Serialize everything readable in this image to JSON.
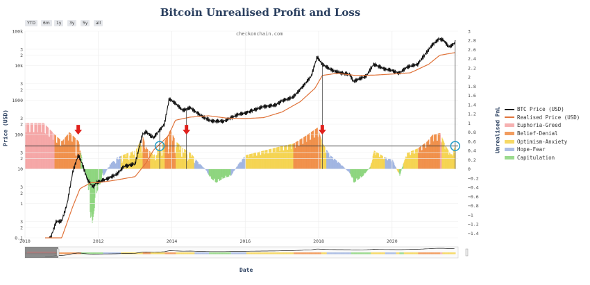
{
  "chart_data": {
    "type": "line",
    "title": "Bitcoin Unrealised Profit and Loss",
    "watermark": "checkonchain.com",
    "xlabel": "Date",
    "ylabel_left": "Price (USD)",
    "ylabel_right": "Unrealised PnL",
    "range_selector": [
      "YTD",
      "6m",
      "1y",
      "3y",
      "5y",
      "all"
    ],
    "x_range": [
      2010.0,
      2021.8
    ],
    "x_ticks": [
      2010,
      2012,
      2014,
      2016,
      2018,
      2020
    ],
    "x_tick_labels": [
      "2010",
      "2012",
      "2014",
      "2016",
      "2018",
      "2020"
    ],
    "y_left_scale": "log",
    "y_left_range": [
      0.1,
      100000
    ],
    "y_left_ticks": [
      {
        "v": 100000,
        "t": "100k"
      },
      {
        "v": 30000,
        "t": "3"
      },
      {
        "v": 20000,
        "t": "2"
      },
      {
        "v": 10000,
        "t": "10k"
      },
      {
        "v": 3000,
        "t": "3"
      },
      {
        "v": 2000,
        "t": "2"
      },
      {
        "v": 1000,
        "t": "1000"
      },
      {
        "v": 300,
        "t": "3"
      },
      {
        "v": 200,
        "t": "2"
      },
      {
        "v": 100,
        "t": "100"
      },
      {
        "v": 30,
        "t": "3"
      },
      {
        "v": 20,
        "t": "2"
      },
      {
        "v": 10,
        "t": "10"
      },
      {
        "v": 3,
        "t": "3"
      },
      {
        "v": 2,
        "t": "2"
      },
      {
        "v": 1,
        "t": "1"
      },
      {
        "v": 0.3,
        "t": "3"
      },
      {
        "v": 0.2,
        "t": "2"
      },
      {
        "v": 0.1,
        "t": "0.1"
      }
    ],
    "y_right_range": [
      -1.5,
      3.0
    ],
    "y_right_ticks": [
      {
        "v": 3,
        "t": "3"
      },
      {
        "v": 2.8,
        "t": "2.8"
      },
      {
        "v": 2.6,
        "t": "2.6"
      },
      {
        "v": 2.4,
        "t": "2.4"
      },
      {
        "v": 2.2,
        "t": "2.2"
      },
      {
        "v": 2,
        "t": "2"
      },
      {
        "v": 1.8,
        "t": "1.8"
      },
      {
        "v": 1.6,
        "t": "1.6"
      },
      {
        "v": 1.4,
        "t": "1.4"
      },
      {
        "v": 1.2,
        "t": "1.2"
      },
      {
        "v": 1,
        "t": "1"
      },
      {
        "v": 0.8,
        "t": "0.8"
      },
      {
        "v": 0.6,
        "t": "0.6"
      },
      {
        "v": 0.4,
        "t": "0.4"
      },
      {
        "v": 0.2,
        "t": "0.2"
      },
      {
        "v": 0,
        "t": "0"
      },
      {
        "v": -0.2,
        "t": "−0.2"
      },
      {
        "v": -0.4,
        "t": "−0.4"
      },
      {
        "v": -0.6,
        "t": "−0.6"
      },
      {
        "v": -0.8,
        "t": "−0.8"
      },
      {
        "v": -1,
        "t": "−1"
      },
      {
        "v": -1.2,
        "t": "−1.2"
      },
      {
        "v": -1.4,
        "t": "−1.4"
      }
    ],
    "reference_line_pnl": 0.5,
    "series": [
      {
        "name": "BTC Price (USD)",
        "color": "#111111",
        "axis": "left",
        "x": [
          2010.55,
          2010.7,
          2010.85,
          2011.0,
          2011.15,
          2011.3,
          2011.45,
          2011.55,
          2011.7,
          2011.85,
          2011.95,
          2012.2,
          2012.5,
          2012.7,
          2013.0,
          2013.2,
          2013.3,
          2013.5,
          2013.8,
          2013.93,
          2014.1,
          2014.3,
          2014.5,
          2014.8,
          2015.05,
          2015.4,
          2015.8,
          2016.0,
          2016.5,
          2016.8,
          2017.0,
          2017.3,
          2017.6,
          2017.8,
          2017.96,
          2018.1,
          2018.3,
          2018.5,
          2018.85,
          2018.95,
          2019.3,
          2019.5,
          2019.8,
          2020.0,
          2020.2,
          2020.4,
          2020.7,
          2020.95,
          2021.1,
          2021.28,
          2021.4,
          2021.55,
          2021.65,
          2021.72
        ],
        "y": [
          0.07,
          0.1,
          0.3,
          0.3,
          1,
          8,
          25,
          15,
          5,
          3,
          4,
          5,
          7,
          12,
          14,
          100,
          120,
          80,
          200,
          1100,
          800,
          500,
          600,
          350,
          250,
          240,
          380,
          420,
          650,
          700,
          950,
          1200,
          2700,
          5000,
          18000,
          11000,
          8000,
          6500,
          5500,
          3500,
          5000,
          11000,
          8000,
          7200,
          6000,
          9000,
          11000,
          25000,
          40000,
          60000,
          55000,
          35000,
          40000,
          48000
        ]
      },
      {
        "name": "Realised Price (USD)",
        "color": "#e0733a",
        "axis": "left",
        "x": [
          2010.55,
          2011.0,
          2011.3,
          2011.5,
          2011.8,
          2012.0,
          2012.5,
          2013.0,
          2013.3,
          2013.5,
          2013.9,
          2014.1,
          2014.5,
          2015.0,
          2015.5,
          2016.0,
          2016.5,
          2017.0,
          2017.5,
          2017.9,
          2018.1,
          2018.5,
          2019.0,
          2019.5,
          2020.0,
          2020.5,
          2021.0,
          2021.3,
          2021.72
        ],
        "y": [
          0.05,
          0.1,
          0.8,
          2.7,
          4,
          4,
          4.8,
          6,
          15,
          35,
          90,
          260,
          320,
          350,
          300,
          290,
          310,
          450,
          900,
          2200,
          5200,
          6000,
          5200,
          5300,
          5700,
          6200,
          11000,
          20000,
          24000
        ]
      },
      {
        "name": "Euphoria-Greed",
        "color": "#f4a3a3",
        "type": "pnl_band",
        "ranges": [
          [
            2010.0,
            2010.8
          ],
          [
            2011.2,
            2011.45
          ],
          [
            2017.9,
            2018.05
          ],
          [
            2020.95,
            2021.35
          ]
        ]
      },
      {
        "name": "Belief-Denial",
        "color": "#f08c44",
        "type": "pnl_band",
        "ranges": [
          [
            2010.8,
            2011.5
          ],
          [
            2013.2,
            2013.4
          ],
          [
            2013.8,
            2014.1
          ],
          [
            2017.3,
            2018.05
          ],
          [
            2020.7,
            2021.3
          ]
        ]
      },
      {
        "name": "Optimism-Anxiety",
        "color": "#f5d24b",
        "type": "pnl_band",
        "ranges": [
          [
            2012.6,
            2013.2
          ],
          [
            2013.4,
            2013.8
          ],
          [
            2014.1,
            2014.6
          ],
          [
            2016.0,
            2017.3
          ],
          [
            2018.05,
            2018.2
          ],
          [
            2019.4,
            2019.8
          ],
          [
            2020.1,
            2020.7
          ],
          [
            2021.35,
            2021.72
          ]
        ]
      },
      {
        "name": "Hope-Fear",
        "color": "#9db3e0",
        "type": "pnl_band",
        "ranges": [
          [
            2012.1,
            2012.6
          ],
          [
            2014.6,
            2015.0
          ],
          [
            2015.6,
            2016.0
          ],
          [
            2018.2,
            2018.85
          ],
          [
            2019.8,
            2020.1
          ]
        ]
      },
      {
        "name": "Capitulation",
        "color": "#8ad37a",
        "type": "pnl_band",
        "ranges": [
          [
            2011.5,
            2012.1
          ],
          [
            2015.0,
            2015.6
          ],
          [
            2018.85,
            2019.4
          ],
          [
            2020.18,
            2020.3
          ]
        ]
      }
    ],
    "pnl": {
      "x": [
        2010.0,
        2010.5,
        2010.8,
        2011.0,
        2011.2,
        2011.45,
        2011.55,
        2011.7,
        2011.8,
        2011.95,
        2012.1,
        2012.3,
        2012.5,
        2012.8,
        2013.0,
        2013.2,
        2013.3,
        2013.5,
        2013.8,
        2013.95,
        2014.1,
        2014.3,
        2014.5,
        2014.7,
        2014.9,
        2015.05,
        2015.2,
        2015.4,
        2015.6,
        2015.8,
        2016.0,
        2016.5,
        2017.0,
        2017.3,
        2017.6,
        2017.96,
        2018.1,
        2018.3,
        2018.6,
        2018.85,
        2018.95,
        2019.2,
        2019.4,
        2019.5,
        2019.8,
        2020.0,
        2020.2,
        2020.25,
        2020.4,
        2020.7,
        2020.95,
        2021.1,
        2021.3,
        2021.45,
        2021.6,
        2021.72
      ],
      "y": [
        1.0,
        1.0,
        0.75,
        0.6,
        0.8,
        0.6,
        0.2,
        -0.3,
        -1.3,
        -0.5,
        -0.2,
        0.1,
        0.25,
        0.35,
        0.4,
        0.7,
        0.45,
        0.3,
        0.6,
        0.85,
        0.6,
        0.45,
        0.35,
        0.15,
        0.0,
        -0.2,
        -0.3,
        -0.2,
        -0.15,
        0.1,
        0.3,
        0.4,
        0.5,
        0.55,
        0.7,
        0.9,
        0.55,
        0.3,
        0.1,
        -0.1,
        -0.3,
        -0.15,
        0.05,
        0.4,
        0.25,
        0.2,
        -0.15,
        0.0,
        0.35,
        0.45,
        0.6,
        0.75,
        0.78,
        0.5,
        0.3,
        0.5
      ]
    },
    "annotations": {
      "red_arrows_x": [
        2011.45,
        2014.4,
        2018.1
      ],
      "circles": [
        {
          "x": 2013.67,
          "pnl": 0.5
        },
        {
          "x": 2021.72,
          "pnl": 0.5
        }
      ],
      "vertical_lines_x": [
        2013.67,
        2014.4,
        2018.1,
        2021.72
      ]
    },
    "legend_position": "right"
  }
}
